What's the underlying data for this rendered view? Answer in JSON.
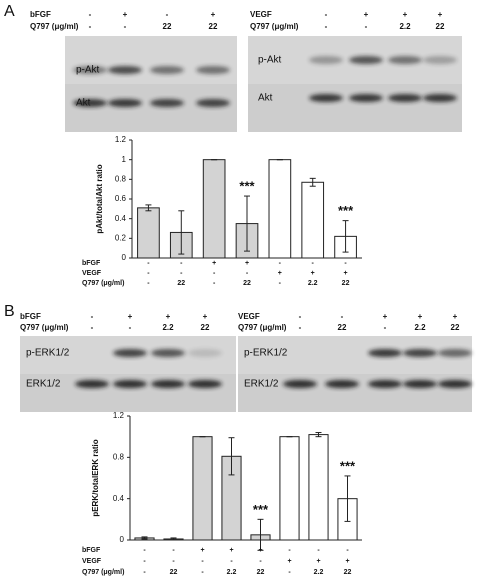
{
  "panels": [
    {
      "label": "A",
      "blots": [
        {
          "treatments": [
            {
              "name": "bFGF",
              "values": [
                "-",
                "+",
                "-",
                "+"
              ]
            },
            {
              "name": "Q797 (μg/ml)",
              "values": [
                "-",
                "-",
                "22",
                "22"
              ]
            }
          ],
          "bands": [
            "p-Akt",
            "Akt"
          ]
        },
        {
          "treatments": [
            {
              "name": "VEGF",
              "values": [
                "-",
                "+",
                "+",
                "+"
              ]
            },
            {
              "name": "Q797 (μg/ml)",
              "values": [
                "-",
                "-",
                "2.2",
                "22"
              ]
            }
          ],
          "bands": [
            "p-Akt",
            "Akt"
          ]
        }
      ]
    },
    {
      "label": "B",
      "blots": [
        {
          "treatments": [
            {
              "name": "bFGF",
              "values": [
                "-",
                "+",
                "+",
                "+"
              ]
            },
            {
              "name": "Q797 (μg/ml)",
              "values": [
                "-",
                "-",
                "2.2",
                "22"
              ]
            }
          ],
          "bands": [
            "p-ERK1/2",
            "ERK1/2"
          ]
        },
        {
          "treatments": [
            {
              "name": "VEGF",
              "values": [
                "-",
                "-",
                "+",
                "+",
                "+"
              ]
            },
            {
              "name": "Q797 (μg/ml)",
              "values": [
                "-",
                "22",
                "-",
                "2.2",
                "22"
              ]
            }
          ],
          "bands": [
            "p-ERK1/2",
            "ERK1/2"
          ]
        }
      ]
    }
  ],
  "chart_data": [
    {
      "type": "bar",
      "ylabel": "pAkt/totalAkt ratio",
      "values": [
        0.51,
        0.26,
        1.0,
        0.35,
        1.0,
        0.77,
        0.22
      ],
      "errors": [
        0.03,
        0.22,
        0,
        0.28,
        0,
        0.04,
        0.16
      ],
      "colors": [
        "#d3d3d3",
        "#d3d3d3",
        "#d3d3d3",
        "#d3d3d3",
        "#ffffff",
        "#ffffff",
        "#ffffff"
      ],
      "significance": [
        null,
        null,
        null,
        "***",
        null,
        null,
        "***"
      ],
      "conditions": [
        {
          "name": "bFGF",
          "values": [
            "-",
            "-",
            "+",
            "+",
            "-",
            "-",
            "-"
          ]
        },
        {
          "name": "VEGF",
          "values": [
            "-",
            "-",
            "-",
            "-",
            "+",
            "+",
            "+"
          ]
        },
        {
          "name": "Q797 (μg/ml)",
          "values": [
            "-",
            "22",
            "-",
            "22",
            "-",
            "2.2",
            "22"
          ]
        }
      ],
      "ylim": [
        0,
        1.2
      ],
      "yticks": [
        0,
        0.2,
        0.4,
        0.6,
        0.8,
        1,
        1.2
      ]
    },
    {
      "type": "bar",
      "ylabel": "pERK/totalERK ratio",
      "values": [
        0.02,
        0.01,
        1.0,
        0.81,
        0.05,
        1.0,
        1.02,
        0.4
      ],
      "errors": [
        0.01,
        0.01,
        0,
        0.18,
        0.15,
        0,
        0.02,
        0.22
      ],
      "colors": [
        "#d3d3d3",
        "#d3d3d3",
        "#d3d3d3",
        "#d3d3d3",
        "#d3d3d3",
        "#ffffff",
        "#ffffff",
        "#ffffff"
      ],
      "significance": [
        null,
        null,
        null,
        null,
        "***",
        null,
        null,
        "***"
      ],
      "conditions": [
        {
          "name": "bFGF",
          "values": [
            "-",
            "-",
            "+",
            "+",
            "+",
            "-",
            "-",
            "-"
          ]
        },
        {
          "name": "VEGF",
          "values": [
            "-",
            "-",
            "-",
            "-",
            "-",
            "+",
            "+",
            "+"
          ]
        },
        {
          "name": "Q797 (μg/ml)",
          "values": [
            "-",
            "22",
            "-",
            "2.2",
            "22",
            "-",
            "2.2",
            "22"
          ]
        }
      ],
      "ylim": [
        0,
        1.2
      ],
      "yticks": [
        0,
        0.4,
        0.8,
        1.2
      ]
    }
  ]
}
